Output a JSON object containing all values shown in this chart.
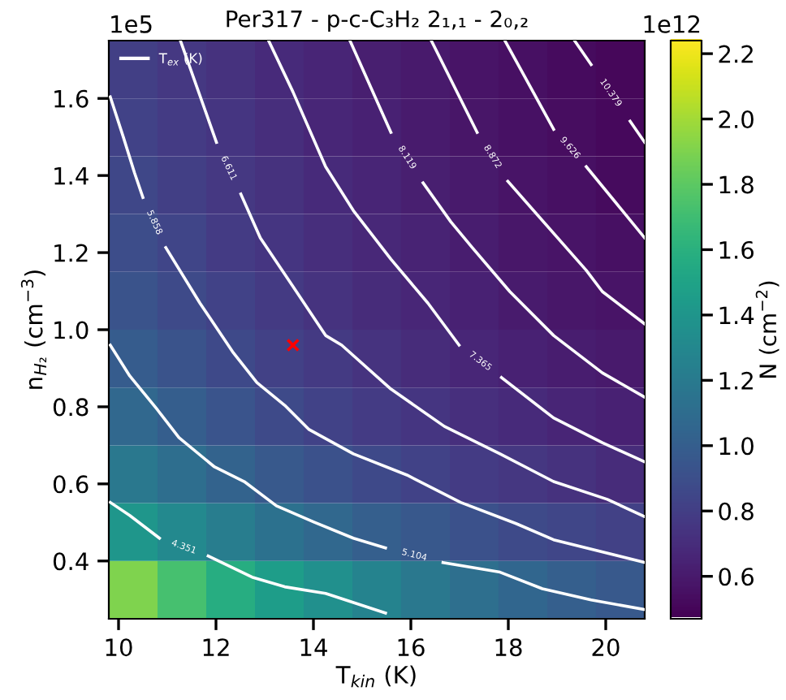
{
  "chart_data": {
    "type": "heatmap",
    "title": "Per317 - p-c-C₃H₂ 2₁,₁ - 2₀,₂",
    "xlabel": "T$_{kin}$ (K)",
    "ylabel": "n$_{H₂}$ (cm$^{−3}$)",
    "clabel": "N (cm$^{−2}$)",
    "legend_title": "T$_{ex}$ (K)",
    "legend": "top left",
    "annotations": [
      "1e5",
      "1e12"
    ],
    "x": [
      10.3,
      11.3,
      12.3,
      13.3,
      14.3,
      15.3,
      16.3,
      17.3,
      18.3,
      19.3,
      20.3
    ],
    "y": [
      1.675,
      1.525,
      1.375,
      1.225,
      1.075,
      0.925,
      0.775,
      0.625,
      0.475,
      0.325
    ],
    "cells": [
      [
        0.8,
        0.76,
        0.72,
        0.68,
        0.65,
        0.62,
        0.59,
        0.56,
        0.54,
        0.52,
        0.5
      ],
      [
        0.82,
        0.78,
        0.74,
        0.7,
        0.66,
        0.63,
        0.6,
        0.57,
        0.55,
        0.53,
        0.51
      ],
      [
        0.85,
        0.8,
        0.76,
        0.72,
        0.68,
        0.65,
        0.62,
        0.59,
        0.56,
        0.54,
        0.52
      ],
      [
        0.88,
        0.83,
        0.78,
        0.74,
        0.7,
        0.67,
        0.64,
        0.61,
        0.58,
        0.56,
        0.54
      ],
      [
        0.92,
        0.87,
        0.82,
        0.77,
        0.73,
        0.69,
        0.66,
        0.63,
        0.6,
        0.58,
        0.56
      ],
      [
        0.98,
        0.92,
        0.86,
        0.81,
        0.77,
        0.73,
        0.69,
        0.66,
        0.63,
        0.61,
        0.59
      ],
      [
        1.06,
        0.99,
        0.93,
        0.87,
        0.82,
        0.78,
        0.74,
        0.71,
        0.68,
        0.65,
        0.63
      ],
      [
        1.18,
        1.1,
        1.03,
        0.96,
        0.91,
        0.86,
        0.82,
        0.78,
        0.75,
        0.72,
        0.69
      ],
      [
        1.4,
        1.3,
        1.21,
        1.13,
        1.06,
        1.0,
        0.95,
        0.91,
        0.87,
        0.84,
        0.81
      ],
      [
        1.9,
        1.72,
        1.57,
        1.45,
        1.35,
        1.26,
        1.18,
        1.11,
        1.05,
        1.0,
        0.96
      ]
    ],
    "clim": [
      0.47,
      2.24
    ],
    "cticks": [
      {
        "value": 0.6,
        "label": "0.6"
      },
      {
        "value": 0.8,
        "label": "0.8"
      },
      {
        "value": 1.0,
        "label": "1.0"
      },
      {
        "value": 1.2,
        "label": "1.2"
      },
      {
        "value": 1.4,
        "label": "1.4"
      },
      {
        "value": 1.6,
        "label": "1.6"
      },
      {
        "value": 1.8,
        "label": "1.8"
      },
      {
        "value": 2.0,
        "label": "2.0"
      },
      {
        "value": 2.2,
        "label": "2.2"
      }
    ],
    "xlim": [
      9.8,
      20.8
    ],
    "ylim": [
      0.25,
      1.75
    ],
    "xticks": [
      10,
      12,
      14,
      16,
      18,
      20
    ],
    "yticks": [
      {
        "value": 0.4,
        "label": "0.4"
      },
      {
        "value": 0.6,
        "label": "0.6"
      },
      {
        "value": 0.8,
        "label": "0.8"
      },
      {
        "value": 1.0,
        "label": "1.0"
      },
      {
        "value": 1.2,
        "label": "1.2"
      },
      {
        "value": 1.4,
        "label": "1.4"
      },
      {
        "value": 1.6,
        "label": "1.6"
      }
    ],
    "series": [
      {
        "type": "line",
        "name": "4.351",
        "color": "#ffffff",
        "x": [
          9.83,
          10.23,
          10.84,
          11.34,
          11.84,
          12.74,
          13.41,
          14.25,
          15.48
        ],
        "values": [
          0.552,
          0.518,
          0.459,
          null,
          0.413,
          0.358,
          0.333,
          0.316,
          0.265
        ]
      },
      {
        "type": "line",
        "name": "5.104",
        "color": "#ffffff",
        "x": [
          9.83,
          10.23,
          10.8,
          11.24,
          11.97,
          12.58,
          13.24,
          14.01,
          14.82,
          15.48,
          16.15,
          16.66,
          17.83,
          18.7,
          19.7,
          20.8
        ],
        "values": [
          0.96,
          0.88,
          0.792,
          0.72,
          0.644,
          0.606,
          0.543,
          0.501,
          0.459,
          0.434,
          null,
          0.396,
          0.371,
          0.328,
          0.299,
          0.274
        ]
      },
      {
        "type": "line",
        "name": "5.858",
        "color": "#ffffff",
        "x": [
          9.83,
          10.1,
          10.33,
          10.5,
          10.8,
          10.97,
          11.67,
          12.34,
          12.84,
          13.41,
          13.91,
          14.82,
          15.92,
          17.02,
          18.16,
          18.93,
          20.8
        ],
        "values": [
          1.604,
          1.499,
          1.406,
          1.343,
          null,
          1.213,
          1.069,
          0.943,
          0.863,
          0.804,
          0.741,
          0.678,
          0.623,
          0.552,
          0.497,
          0.455,
          0.396
        ]
      },
      {
        "type": "line",
        "name": "6.611",
        "color": "#ffffff",
        "x": [
          11.27,
          12.01,
          12.31,
          12.51,
          12.91,
          13.58,
          14.25,
          14.58,
          15.59,
          16.69,
          17.83,
          18.93,
          20.03,
          20.8
        ],
        "values": [
          1.75,
          1.486,
          null,
          1.352,
          1.238,
          1.112,
          0.985,
          0.96,
          0.846,
          0.749,
          0.678,
          0.606,
          0.56,
          0.515
        ]
      },
      {
        "type": "line",
        "name": "7.365",
        "color": "#ffffff",
        "x": [
          13.08,
          13.58,
          14.25,
          14.82,
          15.59,
          16.35,
          16.99,
          17.49,
          17.86,
          18.93,
          19.93,
          20.8
        ],
        "values": [
          1.75,
          1.617,
          1.423,
          1.309,
          1.183,
          1.069,
          0.96,
          null,
          0.876,
          0.771,
          0.707,
          0.657
        ]
      },
      {
        "type": "line",
        "name": "8.119",
        "color": "#ffffff",
        "x": [
          14.75,
          15.59,
          15.92,
          16.25,
          16.82,
          17.26,
          18.03,
          18.93,
          19.93,
          20.8
        ],
        "values": [
          1.75,
          1.512,
          null,
          1.381,
          1.28,
          1.213,
          1.099,
          0.985,
          0.888,
          0.825
        ]
      },
      {
        "type": "line",
        "name": "8.872",
        "color": "#ffffff",
        "x": [
          16.42,
          17.36,
          17.66,
          17.99,
          19.6,
          19.93,
          20.8
        ],
        "values": [
          1.75,
          1.512,
          null,
          1.385,
          1.154,
          1.099,
          1.015
        ]
      },
      {
        "type": "line",
        "name": "9.626",
        "color": "#ffffff",
        "x": [
          17.93,
          18.93,
          19.2,
          19.6,
          20.8
        ],
        "values": [
          1.75,
          1.52,
          null,
          1.423,
          1.238
        ]
      },
      {
        "type": "line",
        "name": "10.379",
        "color": "#ffffff",
        "x": [
          19.36,
          19.7,
          20.17,
          20.5,
          20.8
        ],
        "values": [
          1.75,
          1.688,
          null,
          1.541,
          1.486
        ]
      },
      {
        "type": "scatter",
        "color": "#ff0000",
        "marker": "cross",
        "x": [
          13.58
        ],
        "values": [
          0.96
        ]
      }
    ]
  }
}
